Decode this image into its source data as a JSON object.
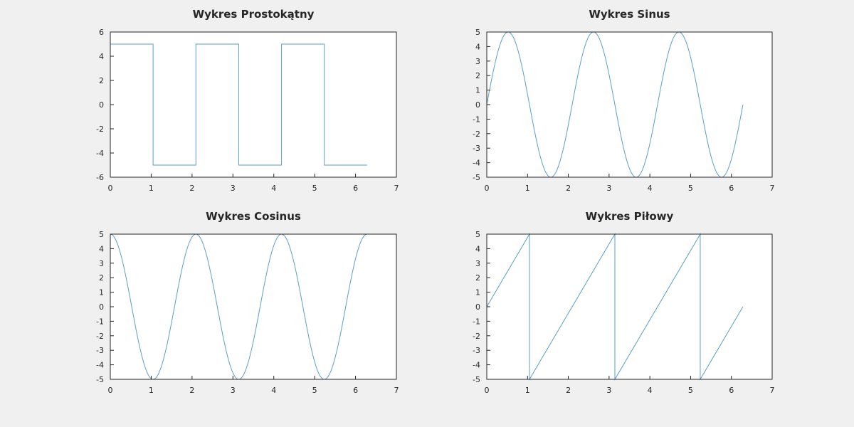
{
  "figure": {
    "background": "#f0f0f0",
    "plot_background": "#ffffff",
    "line_color": "#5a9ec9",
    "axis_color": "#262626"
  },
  "chart_data": [
    {
      "type": "line",
      "title": "Wykres Prostokątny",
      "xlabel": "",
      "ylabel": "",
      "xlim": [
        0,
        7
      ],
      "ylim": [
        -6,
        6
      ],
      "xticks": [
        0,
        1,
        2,
        3,
        4,
        5,
        6,
        7
      ],
      "yticks": [
        -6,
        -4,
        -2,
        0,
        2,
        4,
        6
      ],
      "grid": false,
      "series": [
        {
          "function": "square",
          "amplitude": 5,
          "period": 2.0944,
          "x": [
            0,
            1.047,
            1.047,
            2.094,
            2.094,
            3.142,
            3.142,
            4.189,
            4.189,
            5.236,
            5.236,
            6.283
          ],
          "y": [
            5,
            5,
            -5,
            -5,
            5,
            5,
            -5,
            -5,
            5,
            5,
            -5,
            -5
          ]
        }
      ]
    },
    {
      "type": "line",
      "title": "Wykres Sinus",
      "xlabel": "",
      "ylabel": "",
      "xlim": [
        0,
        7
      ],
      "ylim": [
        -5,
        5
      ],
      "xticks": [
        0,
        1,
        2,
        3,
        4,
        5,
        6,
        7
      ],
      "yticks": [
        -5,
        -4,
        -3,
        -2,
        -1,
        0,
        1,
        2,
        3,
        4,
        5
      ],
      "grid": false,
      "series": [
        {
          "function": "sin",
          "amplitude": 5,
          "frequency": 3,
          "x_range": [
            0,
            6.283
          ]
        }
      ]
    },
    {
      "type": "line",
      "title": "Wykres Cosinus",
      "xlabel": "",
      "ylabel": "",
      "xlim": [
        0,
        7
      ],
      "ylim": [
        -5,
        5
      ],
      "xticks": [
        0,
        1,
        2,
        3,
        4,
        5,
        6,
        7
      ],
      "yticks": [
        -5,
        -4,
        -3,
        -2,
        -1,
        0,
        1,
        2,
        3,
        4,
        5
      ],
      "grid": false,
      "series": [
        {
          "function": "cos",
          "amplitude": 5,
          "frequency": 3,
          "x_range": [
            0,
            6.283
          ]
        }
      ]
    },
    {
      "type": "line",
      "title": "Wykres Piłowy",
      "xlabel": "",
      "ylabel": "",
      "xlim": [
        0,
        7
      ],
      "ylim": [
        -5,
        5
      ],
      "xticks": [
        0,
        1,
        2,
        3,
        4,
        5,
        6,
        7
      ],
      "yticks": [
        -5,
        -4,
        -3,
        -2,
        -1,
        0,
        1,
        2,
        3,
        4,
        5
      ],
      "grid": false,
      "series": [
        {
          "function": "sawtooth",
          "x": [
            0,
            1.047,
            1.047,
            3.142,
            3.142,
            5.236,
            5.236,
            6.283
          ],
          "y": [
            0,
            5,
            -5,
            5,
            -5,
            5,
            -5,
            0
          ]
        }
      ]
    }
  ]
}
